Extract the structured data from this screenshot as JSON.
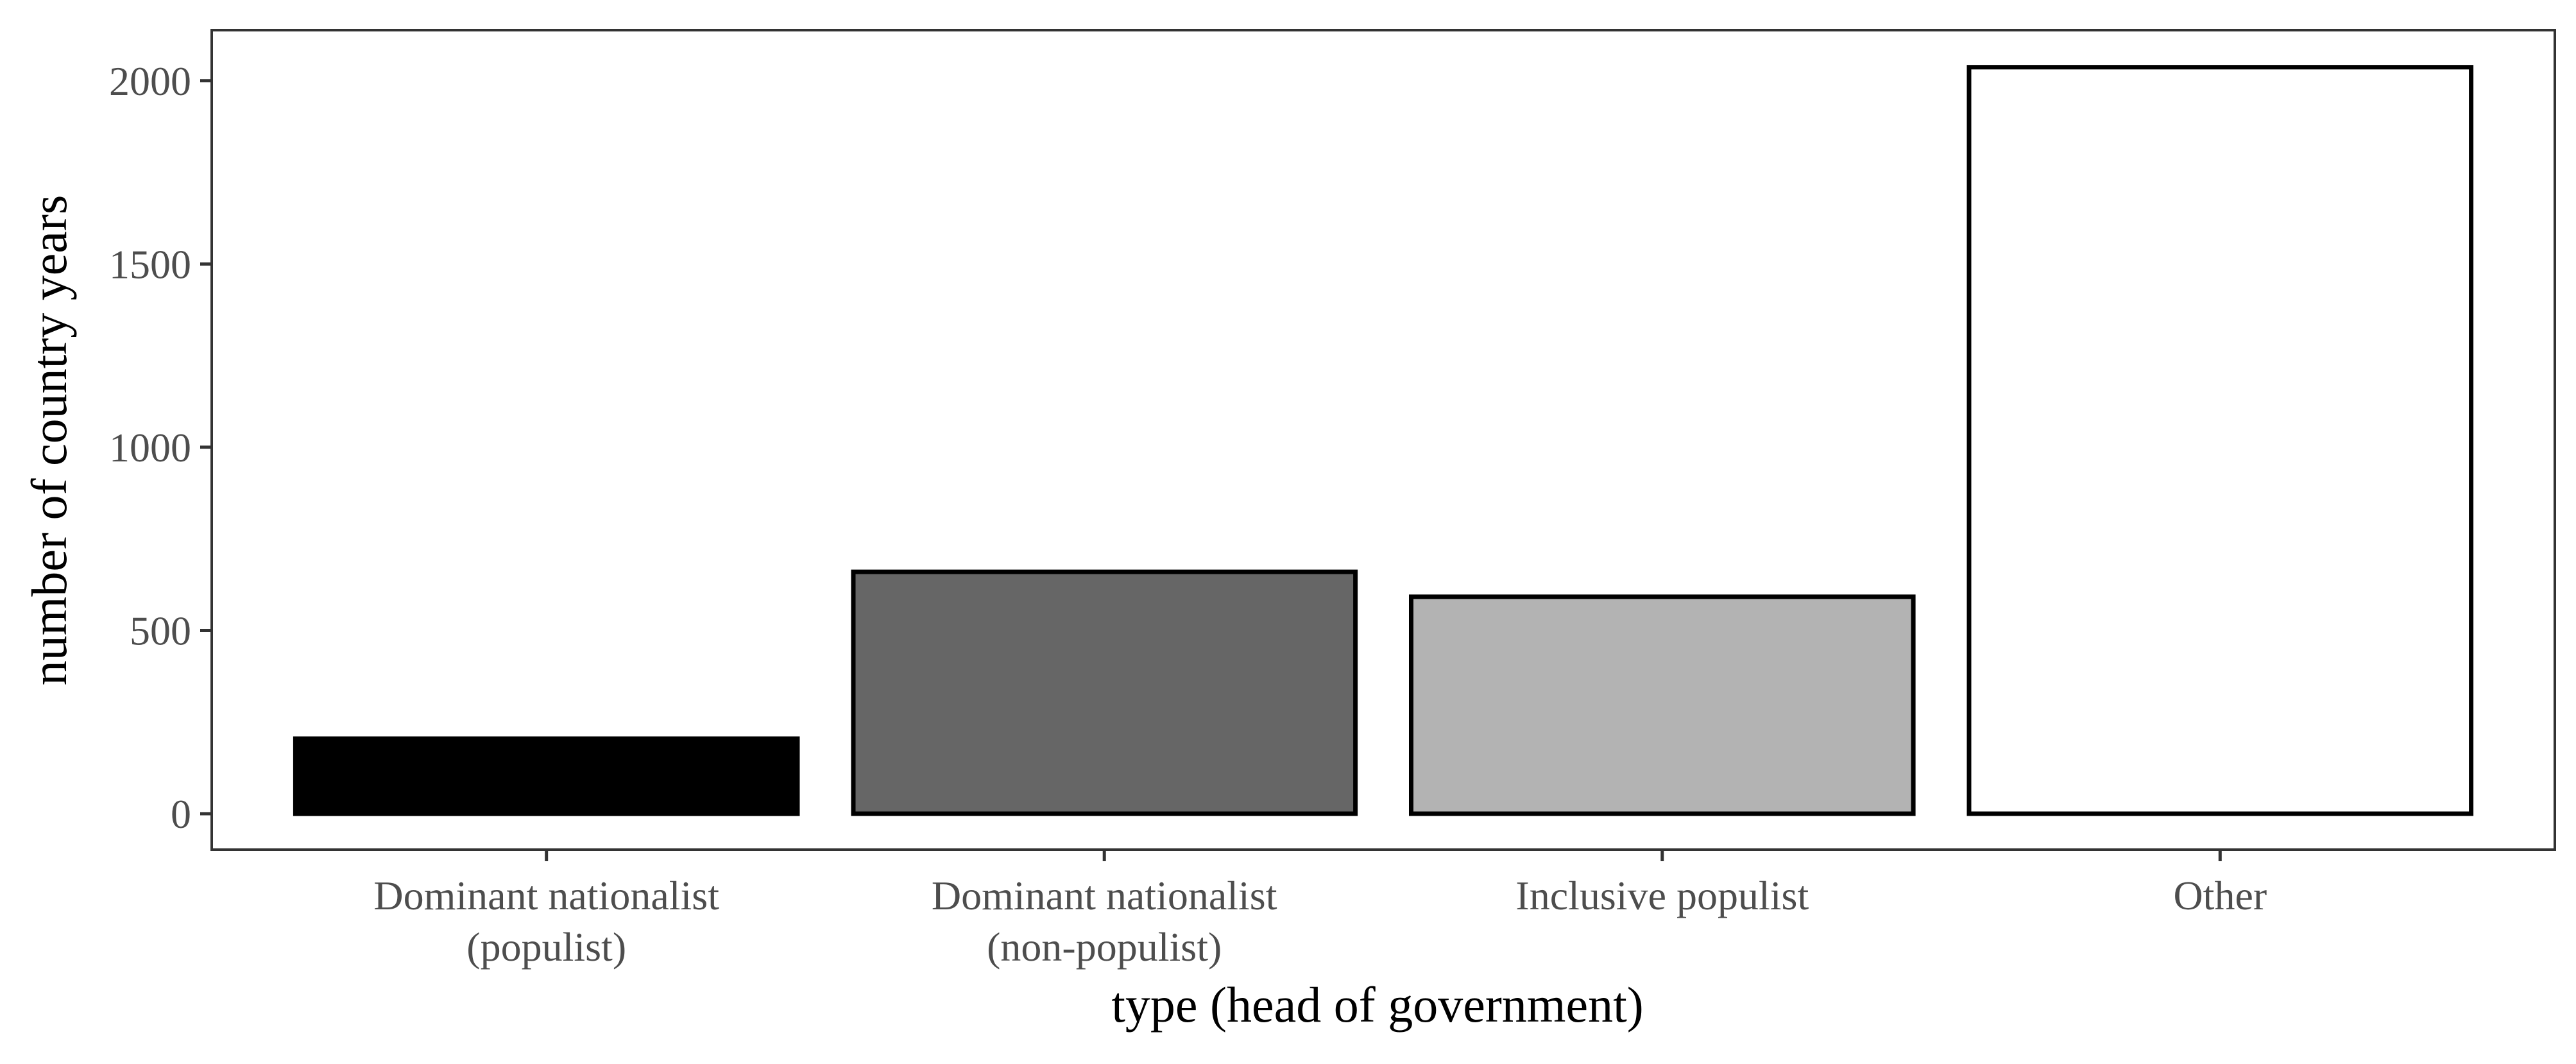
{
  "chart_data": {
    "type": "bar",
    "title": "",
    "xlabel": "type (head of government)",
    "ylabel": "number of country years",
    "categories": [
      [
        "Dominant nationalist",
        "(populist)"
      ],
      [
        "Dominant nationalist",
        "(non-populist)"
      ],
      [
        "Inclusive populist"
      ],
      [
        "Other"
      ]
    ],
    "values": [
      205,
      660,
      592,
      2037
    ],
    "fills": [
      "#000000",
      "#666666",
      "#b3b3b3",
      "#ffffff"
    ],
    "ylim": [
      -98,
      2138
    ],
    "yticks": [
      0,
      500,
      1000,
      1500,
      2000
    ],
    "ytick_labels": [
      "0",
      "500",
      "1000",
      "1500",
      "2000"
    ],
    "grid": false,
    "legend": "none"
  }
}
